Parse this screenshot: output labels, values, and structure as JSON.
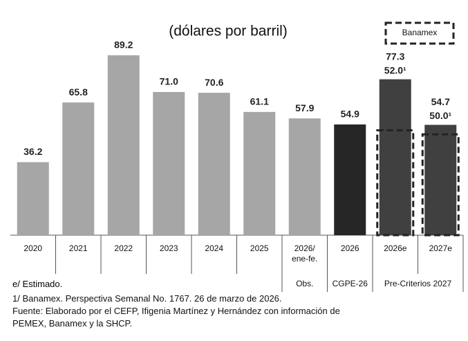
{
  "chart_data": {
    "type": "bar",
    "title": "(dólares por barril)",
    "categories": [
      "2020",
      "2021",
      "2022",
      "2023",
      "2024",
      "2025",
      "2026/\nene-fe.",
      "2026",
      "2026e",
      "2027e"
    ],
    "values": [
      36.2,
      65.8,
      89.2,
      71.0,
      70.6,
      61.1,
      57.9,
      54.9,
      77.3,
      54.7
    ],
    "value_labels": [
      "36.2",
      "65.8",
      "89.2",
      "71.0",
      "70.6",
      "61.1",
      "57.9",
      "54.9",
      "77.3",
      "54.7"
    ],
    "colors": [
      "#a6a6a6",
      "#a6a6a6",
      "#a6a6a6",
      "#a6a6a6",
      "#a6a6a6",
      "#a6a6a6",
      "#a6a6a6",
      "#262626",
      "#404040",
      "#404040"
    ],
    "ylim": [
      0,
      95
    ],
    "overlay": {
      "name": "Banamex",
      "color": "#222222",
      "values": [
        null,
        null,
        null,
        null,
        null,
        null,
        null,
        null,
        52.0,
        50.0
      ],
      "value_labels": [
        null,
        null,
        null,
        null,
        null,
        null,
        null,
        null,
        "52.0¹",
        "50.0¹"
      ]
    },
    "groups": [
      {
        "label": "Obs.",
        "first": 6,
        "last": 6
      },
      {
        "label": "CGPE-26",
        "first": 7,
        "last": 7
      },
      {
        "label": "Pre-Criterios 2027",
        "first": 8,
        "last": 9
      }
    ],
    "estimate_note": "e/ Estimado.",
    "notes": [
      "1/ Banamex. Perspectiva Semanal No. 1767. 26 de marzo de 2026.",
      "Fuente: Elaborado por el CEFP, Ifigenia Martínez y Hernández con información de",
      "PEMEX, Banamex y la SHCP."
    ]
  }
}
